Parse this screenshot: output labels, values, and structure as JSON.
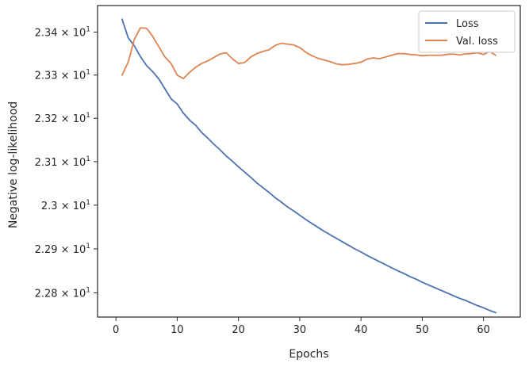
{
  "chart_data": {
    "type": "line",
    "xlabel": "Epochs",
    "ylabel": "Negative log-likelihood",
    "xlim": [
      -3,
      66
    ],
    "ylim": [
      22.745,
      23.462
    ],
    "yscale": "log",
    "grid": false,
    "legend": "top-right",
    "x_ticks": [
      0,
      10,
      20,
      30,
      40,
      50,
      60
    ],
    "x_tick_labels": [
      "0",
      "10",
      "20",
      "30",
      "40",
      "50",
      "60"
    ],
    "y_ticks": [
      {
        "value": 23.4,
        "mantissa": "2.34"
      },
      {
        "value": 23.3,
        "mantissa": "2.33"
      },
      {
        "value": 23.2,
        "mantissa": "2.32"
      },
      {
        "value": 23.1,
        "mantissa": "2.31"
      },
      {
        "value": 23.0,
        "mantissa": "2.3"
      },
      {
        "value": 22.9,
        "mantissa": "2.29"
      },
      {
        "value": 22.8,
        "mantissa": "2.28"
      }
    ],
    "y_tick_times": "×",
    "y_tick_base": "10",
    "y_tick_exp": "1",
    "x": [
      1,
      2,
      3,
      4,
      5,
      6,
      7,
      8,
      9,
      10,
      11,
      12,
      13,
      14,
      15,
      16,
      17,
      18,
      19,
      20,
      21,
      22,
      23,
      24,
      25,
      26,
      27,
      28,
      29,
      30,
      31,
      32,
      33,
      34,
      35,
      36,
      37,
      38,
      39,
      40,
      41,
      42,
      43,
      44,
      45,
      46,
      47,
      48,
      49,
      50,
      51,
      52,
      53,
      54,
      55,
      56,
      57,
      58,
      59,
      60,
      61,
      62
    ],
    "series": [
      {
        "name": "Loss",
        "color": "#4c72b0",
        "values": [
          23.43,
          23.387,
          23.368,
          23.343,
          23.322,
          23.308,
          23.291,
          23.268,
          23.245,
          23.233,
          23.212,
          23.196,
          23.184,
          23.167,
          23.154,
          23.14,
          23.127,
          23.113,
          23.101,
          23.088,
          23.076,
          23.064,
          23.051,
          23.04,
          23.029,
          23.017,
          23.007,
          22.996,
          22.987,
          22.977,
          22.967,
          22.958,
          22.949,
          22.94,
          22.932,
          22.924,
          22.916,
          22.908,
          22.9,
          22.893,
          22.885,
          22.878,
          22.871,
          22.864,
          22.857,
          22.85,
          22.844,
          22.837,
          22.831,
          22.824,
          22.818,
          22.812,
          22.806,
          22.8,
          22.794,
          22.788,
          22.783,
          22.777,
          22.771,
          22.766,
          22.76,
          22.755
        ]
      },
      {
        "name": "Val. loss",
        "color": "#dd8452",
        "values": [
          23.3,
          23.33,
          23.383,
          23.41,
          23.409,
          23.39,
          23.366,
          23.342,
          23.327,
          23.3,
          23.292,
          23.306,
          23.318,
          23.327,
          23.333,
          23.341,
          23.349,
          23.352,
          23.338,
          23.327,
          23.329,
          23.342,
          23.35,
          23.355,
          23.359,
          23.369,
          23.374,
          23.372,
          23.37,
          23.364,
          23.353,
          23.345,
          23.339,
          23.335,
          23.331,
          23.326,
          23.324,
          23.325,
          23.327,
          23.33,
          23.337,
          23.34,
          23.338,
          23.342,
          23.346,
          23.35,
          23.35,
          23.348,
          23.347,
          23.345,
          23.346,
          23.346,
          23.346,
          23.348,
          23.349,
          23.347,
          23.349,
          23.35,
          23.352,
          23.348,
          23.355,
          23.346
        ]
      }
    ]
  }
}
